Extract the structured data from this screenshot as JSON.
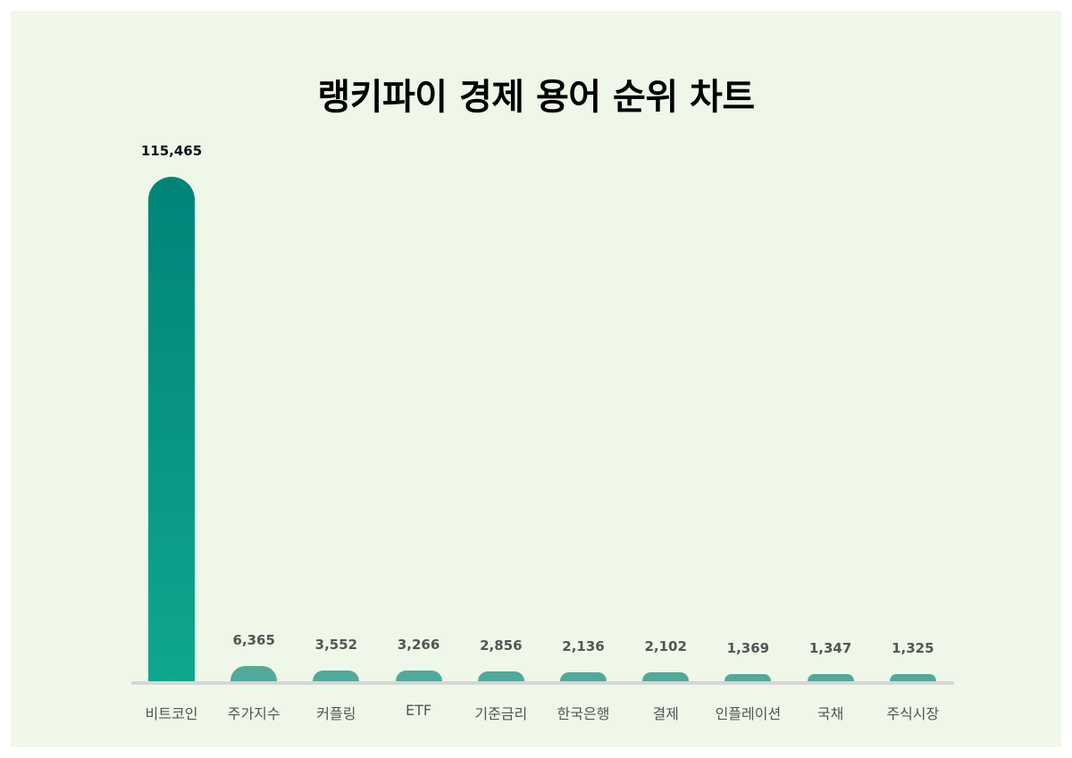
{
  "chart_data": {
    "type": "bar",
    "title": "랭키파이 경제 용어 순위 차트",
    "xlabel": "",
    "ylabel": "",
    "categories": [
      "비트코인",
      "주가지수",
      "커플링",
      "ETF",
      "기준금리",
      "한국은행",
      "결제",
      "인플레이션",
      "국채",
      "주식시장"
    ],
    "values": [
      115465,
      6365,
      3552,
      3266,
      2856,
      2136,
      2102,
      1369,
      1347,
      1325
    ],
    "value_labels": [
      "115,465",
      "6,365",
      "3,552",
      "3,266",
      "2,856",
      "2,136",
      "2,102",
      "1,369",
      "1,347",
      "1,325"
    ],
    "grid": false,
    "legend": null,
    "colors": {
      "top_bar_start": "#018478",
      "top_bar_end": "#0fa78e",
      "bar": "#52a99a",
      "background": "#eff7e9",
      "baseline": "#d6d6d6"
    }
  }
}
